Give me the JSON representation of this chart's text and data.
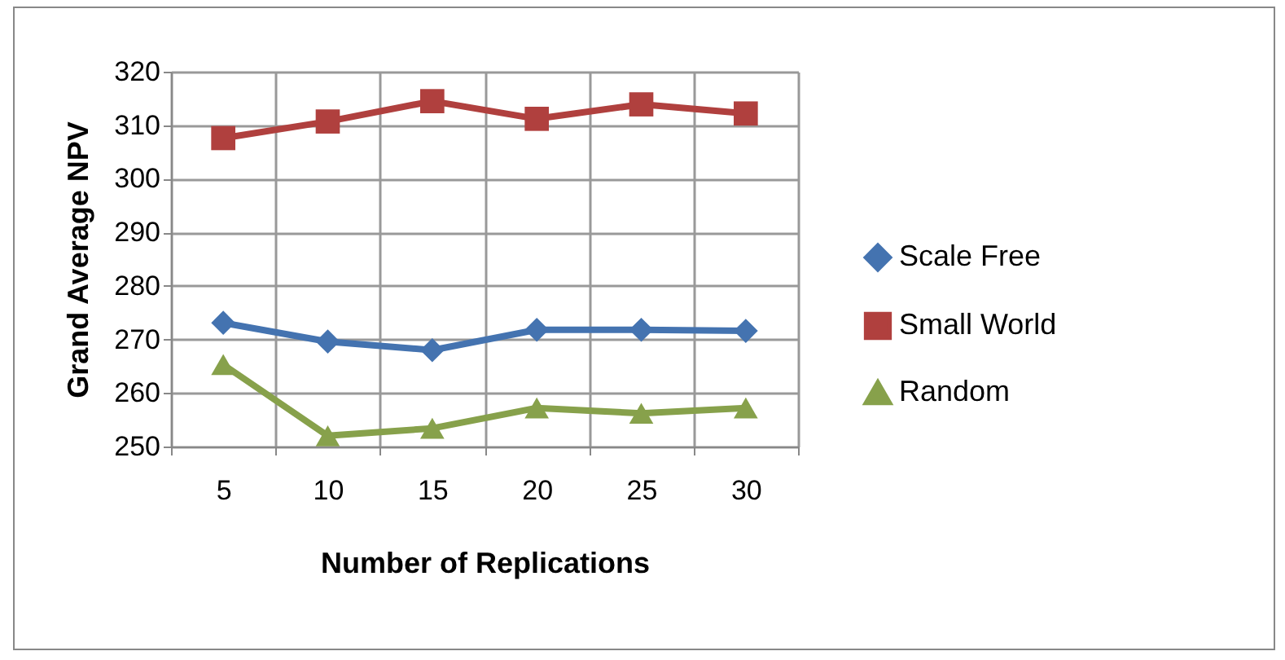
{
  "chart_data": {
    "type": "line",
    "xlabel": "Number of Replications",
    "ylabel": "Grand Average NPV",
    "categories": [
      "5",
      "10",
      "15",
      "20",
      "25",
      "30"
    ],
    "series": [
      {
        "name": "Scale Free",
        "color": "#4473b0",
        "marker": "diamond",
        "values": [
          273.1,
          269.6,
          268.0,
          271.8,
          271.8,
          271.6
        ]
      },
      {
        "name": "Small World",
        "color": "#b0403e",
        "marker": "square",
        "values": [
          307.6,
          310.7,
          314.5,
          311.2,
          313.9,
          312.2
        ]
      },
      {
        "name": "Random",
        "color": "#87a14b",
        "marker": "triangle",
        "values": [
          265.3,
          252.0,
          253.4,
          257.2,
          256.2,
          257.2
        ]
      }
    ],
    "ylim": [
      250,
      320
    ],
    "yticks": [
      250,
      260,
      270,
      280,
      290,
      300,
      310,
      320
    ],
    "grid": true,
    "legend": "right",
    "line_style": "solid"
  }
}
